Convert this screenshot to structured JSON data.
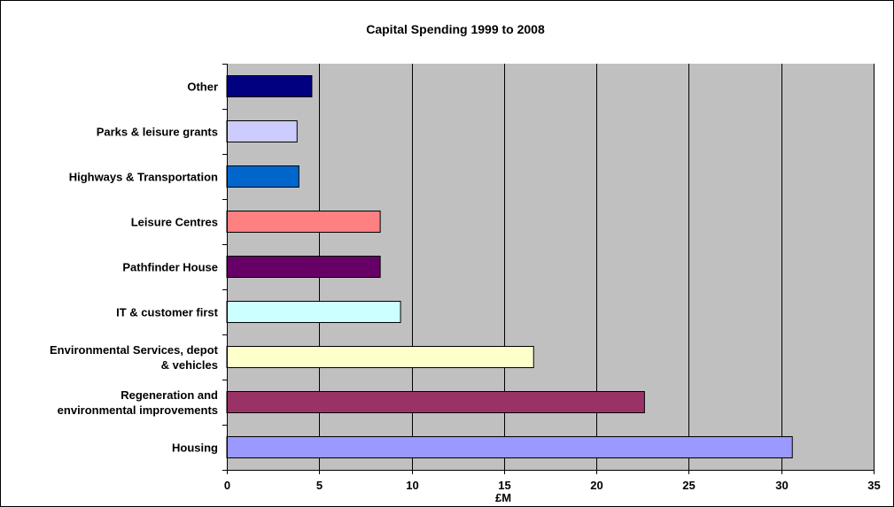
{
  "chart_data": {
    "type": "bar",
    "orientation": "horizontal",
    "title": "Capital Spending 1999 to 2008",
    "xlabel": "£M",
    "ylabel": "",
    "xlim": [
      0,
      35
    ],
    "xticks": [
      0,
      5,
      10,
      15,
      20,
      25,
      30,
      35
    ],
    "grid": true,
    "legend": "none",
    "plot_background": "#c0c0c0",
    "categories": [
      "Housing",
      "Regeneration and environmental improvements",
      "Environmental Services, depot & vehicles",
      "IT & customer first",
      "Pathfinder House",
      "Leisure Centres",
      "Highways & Transportation",
      "Parks & leisure grants",
      "Other"
    ],
    "category_lines": [
      [
        "Housing"
      ],
      [
        "Regeneration and",
        "environmental improvements"
      ],
      [
        "Environmental Services, depot",
        "& vehicles"
      ],
      [
        "IT & customer first"
      ],
      [
        "Pathfinder House"
      ],
      [
        "Leisure Centres"
      ],
      [
        "Highways & Transportation"
      ],
      [
        "Parks & leisure grants"
      ],
      [
        "Other"
      ]
    ],
    "values": [
      30.6,
      22.6,
      16.6,
      9.4,
      8.3,
      8.3,
      3.9,
      3.8,
      4.6
    ],
    "colors": [
      "#9999ff",
      "#993366",
      "#ffffcc",
      "#ccffff",
      "#660066",
      "#ff8080",
      "#0066cc",
      "#ccccff",
      "#000080"
    ]
  }
}
